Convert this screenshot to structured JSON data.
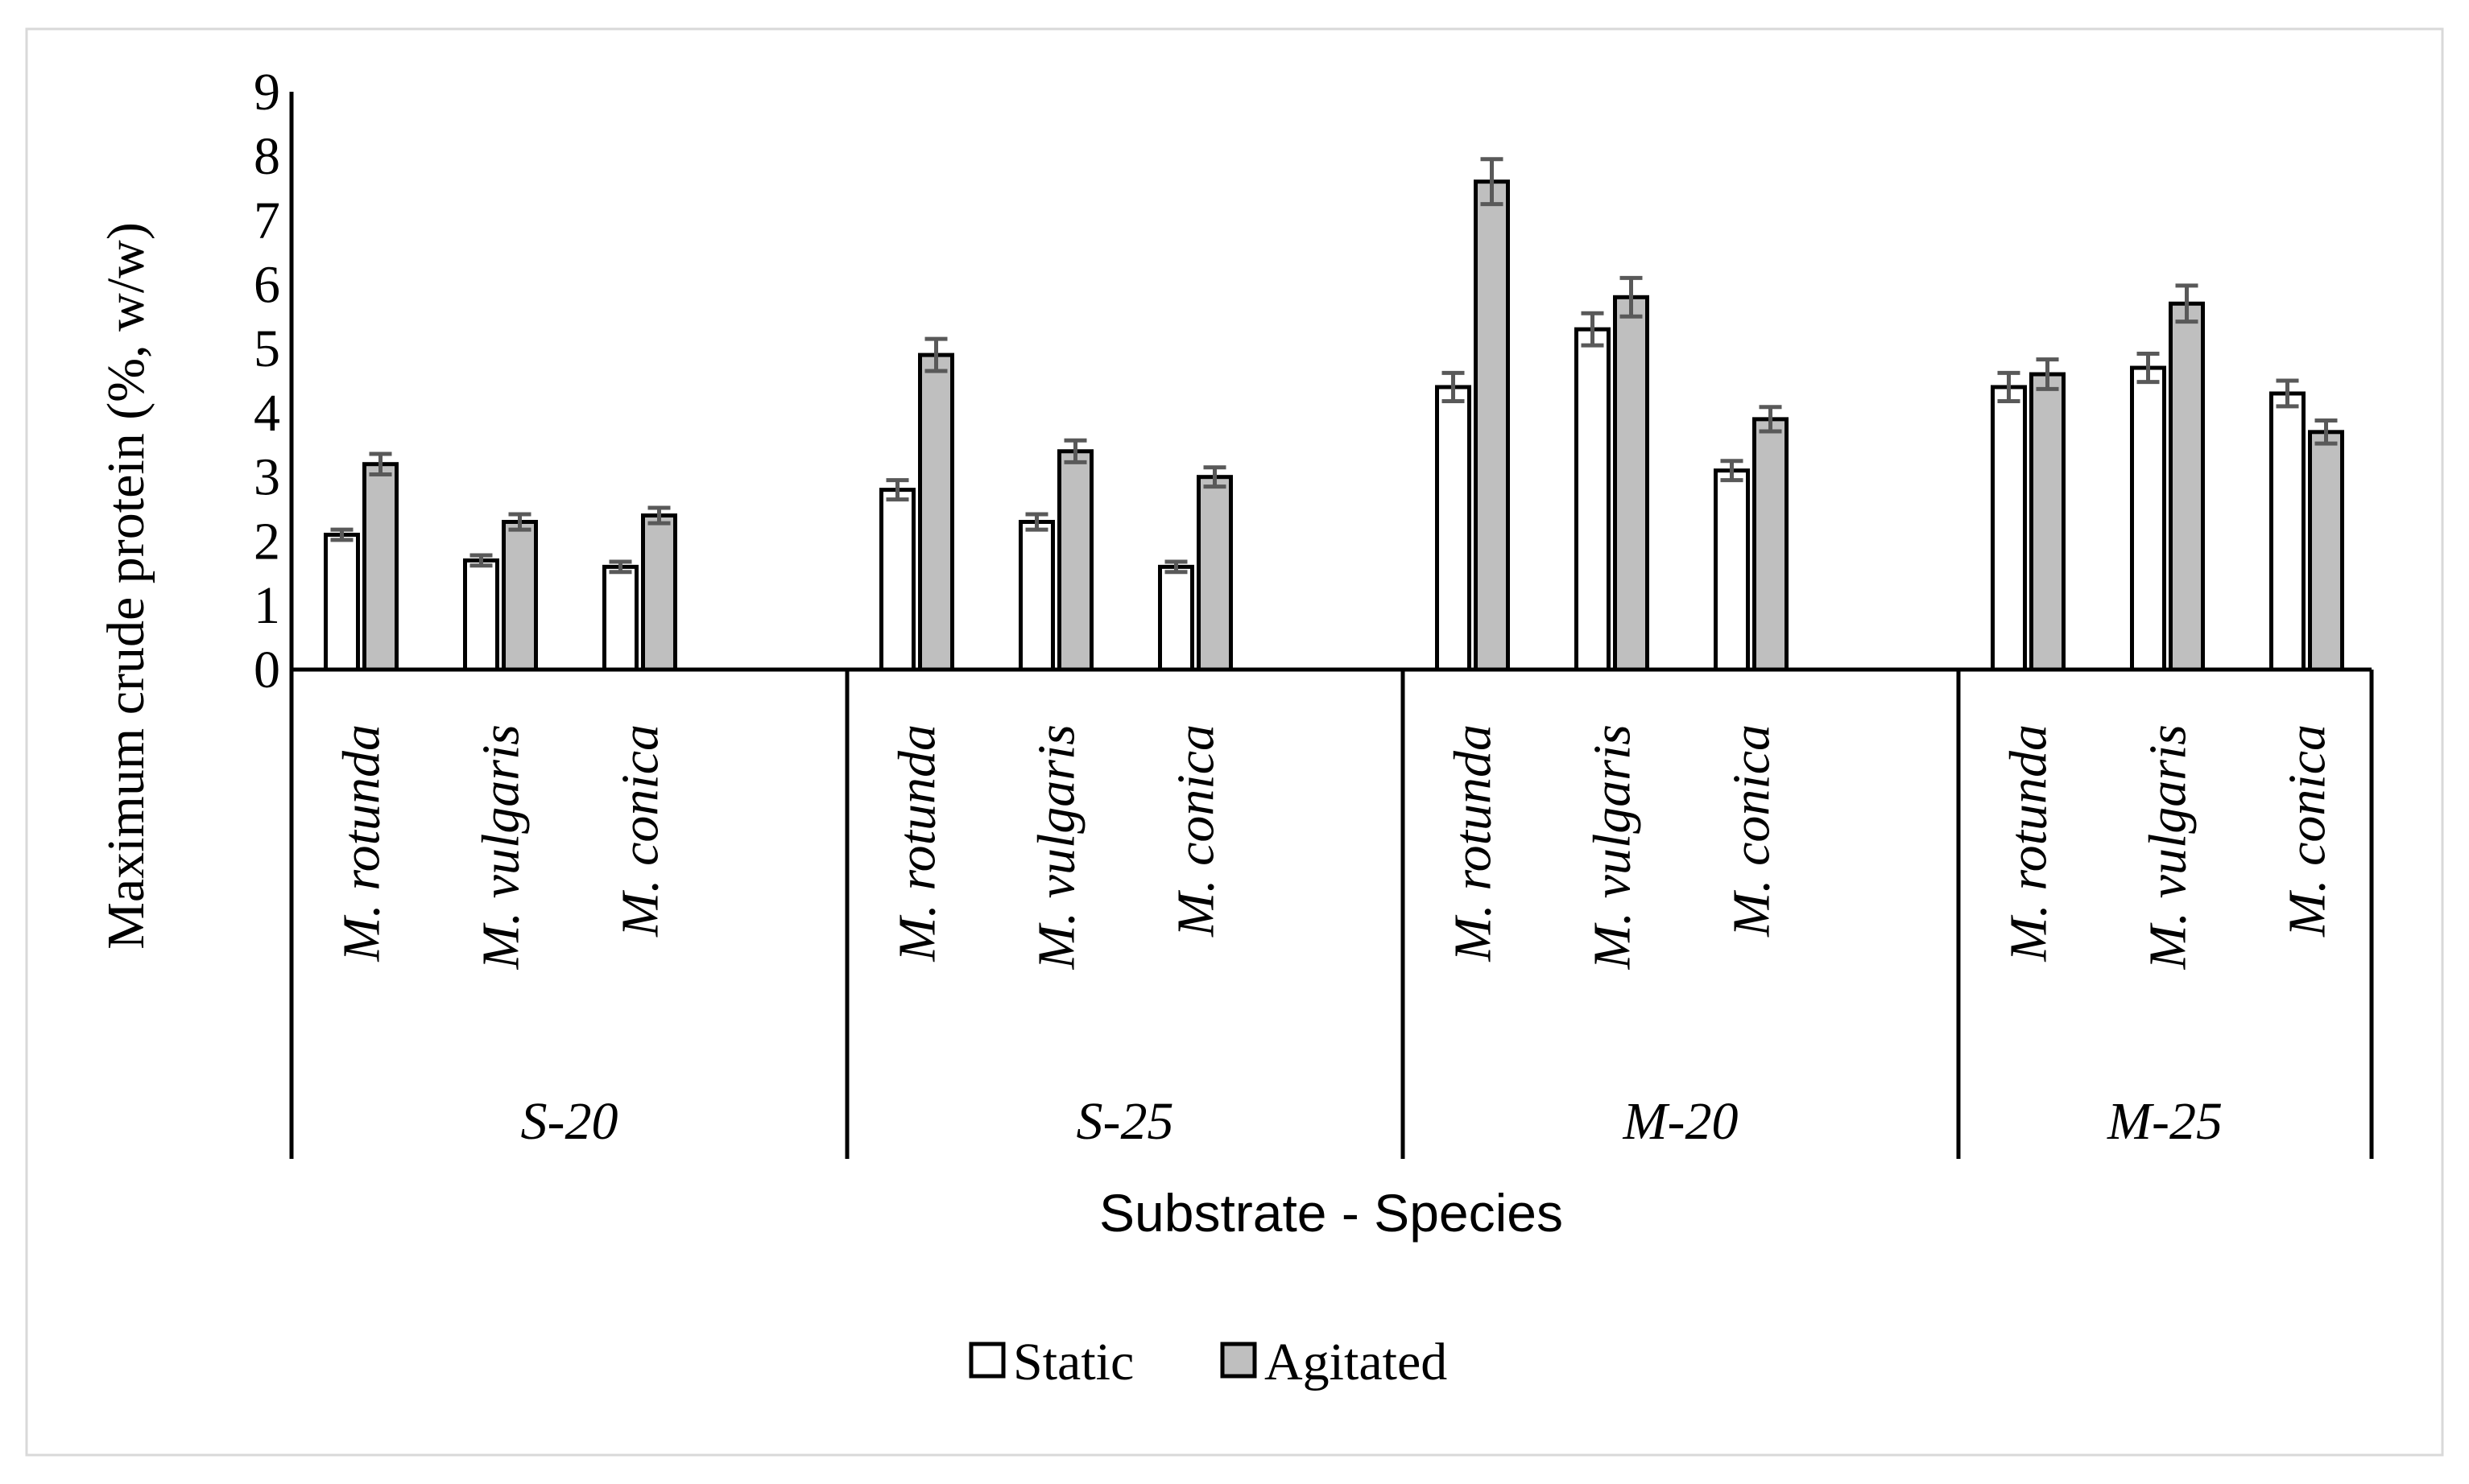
{
  "chart_data": {
    "type": "bar",
    "title": "",
    "xlabel": "Substrate - Species",
    "ylabel": "Maximum crude protein (%, w/w)",
    "ylim": [
      0,
      9
    ],
    "yticks": [
      "0",
      "1",
      "2",
      "3",
      "4",
      "5",
      "6",
      "7",
      "8",
      "9"
    ],
    "groups": [
      {
        "name": "S-20",
        "species": [
          "M. rotunda",
          "M. vulgaris",
          "M. conica"
        ]
      },
      {
        "name": "S-25",
        "species": [
          "M. rotunda",
          "M. vulgaris",
          "M. conica"
        ]
      },
      {
        "name": "M-20",
        "species": [
          "M. rotunda",
          "M. vulgaris",
          "M. conica"
        ]
      },
      {
        "name": "M-25",
        "species": [
          "M. rotunda",
          "M. vulgaris",
          "M. conica"
        ]
      }
    ],
    "series": [
      {
        "name": "Static",
        "color": "#ffffff",
        "values": [
          2.1,
          1.7,
          1.6,
          2.8,
          2.3,
          1.6,
          4.4,
          5.3,
          3.1,
          4.4,
          4.7,
          4.3
        ],
        "errors": [
          0.08,
          0.08,
          0.08,
          0.15,
          0.12,
          0.08,
          0.22,
          0.25,
          0.15,
          0.22,
          0.22,
          0.2
        ]
      },
      {
        "name": "Agitated",
        "color": "#bfbfbf",
        "values": [
          3.2,
          2.3,
          2.4,
          4.9,
          3.4,
          3.0,
          7.6,
          5.8,
          3.9,
          4.6,
          5.7,
          3.7
        ],
        "errors": [
          0.16,
          0.12,
          0.12,
          0.25,
          0.17,
          0.15,
          0.35,
          0.3,
          0.19,
          0.23,
          0.28,
          0.18
        ]
      }
    ],
    "legend": {
      "position": "bottom-center",
      "entries": [
        "Static",
        "Agitated"
      ]
    },
    "grid": false
  }
}
